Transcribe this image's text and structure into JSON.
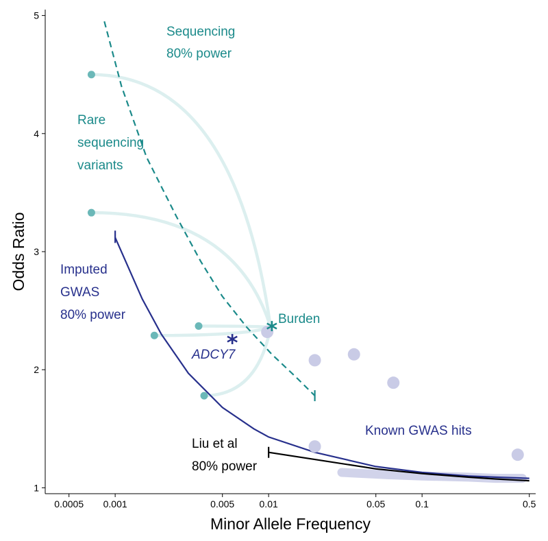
{
  "chart_data": {
    "type": "scatter",
    "xlabel": "Minor Allele Frequency",
    "ylabel": "Odds Ratio",
    "xscale": "log",
    "xlim": [
      0.00035,
      0.55
    ],
    "ylim": [
      0.95,
      5.05
    ],
    "x_ticks": [
      {
        "value": 0.0005,
        "label": "0.0005"
      },
      {
        "value": 0.001,
        "label": "0.001"
      },
      {
        "value": 0.005,
        "label": "0.005"
      },
      {
        "value": 0.01,
        "label": "0.01"
      },
      {
        "value": 0.05,
        "label": "0.05"
      },
      {
        "value": 0.1,
        "label": "0.1"
      },
      {
        "value": 0.5,
        "label": "0.5"
      }
    ],
    "y_ticks": [
      {
        "value": 1,
        "label": "1"
      },
      {
        "value": 2,
        "label": "2"
      },
      {
        "value": 3,
        "label": "3"
      },
      {
        "value": 4,
        "label": "4"
      },
      {
        "value": 5,
        "label": "5"
      }
    ],
    "colors": {
      "teal": "#1b8a8a",
      "teal_point": "#6bb8b8",
      "teal_light": "#dcefef",
      "navy": "#27308c",
      "lavender": "#c9cbe6",
      "black": "#000000"
    },
    "series": [
      {
        "name": "Rare sequencing variants",
        "points": [
          {
            "x": 0.0007,
            "y": 4.5
          },
          {
            "x": 0.0007,
            "y": 3.33
          },
          {
            "x": 0.0035,
            "y": 2.37
          },
          {
            "x": 0.0018,
            "y": 2.29
          },
          {
            "x": 0.0038,
            "y": 1.78
          }
        ]
      },
      {
        "name": "Known GWAS hits",
        "points": [
          {
            "x": 0.0098,
            "y": 2.32
          },
          {
            "x": 0.02,
            "y": 2.08
          },
          {
            "x": 0.036,
            "y": 2.13
          },
          {
            "x": 0.065,
            "y": 1.89
          },
          {
            "x": 0.02,
            "y": 1.35
          },
          {
            "x": 0.42,
            "y": 1.28
          }
        ]
      },
      {
        "name": "Burden",
        "points": [
          {
            "x": 0.0105,
            "y": 2.35
          }
        ]
      },
      {
        "name": "ADCY7",
        "points": [
          {
            "x": 0.0058,
            "y": 2.24
          }
        ]
      },
      {
        "name": "Rare-variant-to-burden links",
        "links": [
          {
            "from": [
              0.0007,
              4.5
            ],
            "to": [
              0.0103,
              2.36
            ]
          },
          {
            "from": [
              0.0007,
              3.33
            ],
            "to": [
              0.0103,
              2.36
            ]
          },
          {
            "from": [
              0.0035,
              2.37
            ],
            "to": [
              0.0103,
              2.36
            ]
          },
          {
            "from": [
              0.0018,
              2.29
            ],
            "to": [
              0.0103,
              2.36
            ]
          },
          {
            "from": [
              0.0038,
              1.78
            ],
            "to": [
              0.0103,
              2.36
            ]
          }
        ]
      },
      {
        "name": "GWAS hits band",
        "x": [
          0.03,
          0.06,
          0.1,
          0.2,
          0.3,
          0.45
        ],
        "y": [
          1.13,
          1.11,
          1.1,
          1.09,
          1.08,
          1.08
        ]
      },
      {
        "name": "Sequencing 80% power",
        "style": "dashed",
        "x": [
          0.00085,
          0.0011,
          0.0016,
          0.0025,
          0.0036,
          0.005,
          0.0072,
          0.0105,
          0.015,
          0.02
        ],
        "y": [
          4.95,
          4.4,
          3.8,
          3.3,
          2.92,
          2.62,
          2.36,
          2.13,
          1.94,
          1.78
        ]
      },
      {
        "name": "Imputed GWAS 80% power",
        "x": [
          0.001,
          0.0015,
          0.002,
          0.003,
          0.005,
          0.008,
          0.01,
          0.02,
          0.05,
          0.1,
          0.2,
          0.3,
          0.5
        ],
        "y": [
          3.12,
          2.6,
          2.3,
          1.97,
          1.68,
          1.5,
          1.43,
          1.3,
          1.18,
          1.13,
          1.1,
          1.09,
          1.08
        ]
      },
      {
        "name": "Liu et al 80% power",
        "x": [
          0.01,
          0.02,
          0.05,
          0.1,
          0.2,
          0.3,
          0.5
        ],
        "y": [
          1.3,
          1.24,
          1.16,
          1.12,
          1.09,
          1.075,
          1.06
        ]
      }
    ],
    "annotations": {
      "sequencing_power": [
        "Sequencing",
        "80% power"
      ],
      "rare_variants": [
        "Rare",
        "sequencing",
        "variants"
      ],
      "imputed_gwas": [
        "Imputed",
        "GWAS",
        "80% power"
      ],
      "burden": "Burden",
      "adcy7": "ADCY7",
      "known_gwas_hits": "Known GWAS hits",
      "liu_power": [
        "Liu et al",
        "80% power"
      ]
    }
  }
}
